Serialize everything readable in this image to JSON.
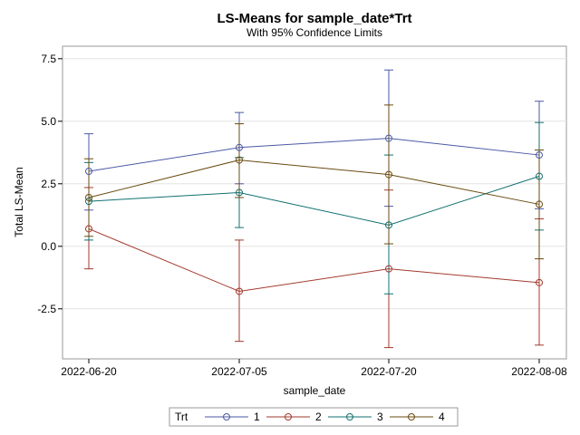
{
  "chart_data": {
    "type": "line",
    "title": "LS-Means for sample_date*Trt",
    "subtitle": "With 95% Confidence Limits",
    "xlabel": "sample_date",
    "ylabel": "Total LS-Mean",
    "categories": [
      "2022-06-20",
      "2022-07-05",
      "2022-07-20",
      "2022-08-08"
    ],
    "ylim": [
      -4.5,
      8.0
    ],
    "yticks": [
      -2.5,
      0.0,
      2.5,
      5.0,
      7.5
    ],
    "ytick_labels": [
      "-2.5",
      "0.0",
      "2.5",
      "5.0",
      "7.5"
    ],
    "grid": "horizontal",
    "legend": {
      "title": "Trt",
      "placement": "bottom"
    },
    "series": [
      {
        "name": "1",
        "color": "#4a5aa6",
        "values": [
          3.0,
          3.95,
          4.32,
          3.65
        ],
        "lower": [
          1.45,
          2.5,
          1.6,
          1.5
        ],
        "upper": [
          4.5,
          5.35,
          7.05,
          5.8
        ]
      },
      {
        "name": "2",
        "color": "#a33a2e",
        "values": [
          0.7,
          -1.8,
          -0.9,
          -1.45
        ],
        "lower": [
          -0.9,
          -3.8,
          -4.05,
          -3.95
        ],
        "upper": [
          2.35,
          0.25,
          2.25,
          1.1
        ]
      },
      {
        "name": "3",
        "color": "#127070",
        "values": [
          1.8,
          2.15,
          0.85,
          2.8
        ],
        "lower": [
          0.25,
          0.75,
          -1.9,
          0.65
        ],
        "upper": [
          3.35,
          3.55,
          3.65,
          4.95
        ]
      },
      {
        "name": "4",
        "color": "#6a4a10",
        "values": [
          1.95,
          3.45,
          2.87,
          1.68
        ],
        "lower": [
          0.4,
          1.95,
          0.1,
          -0.5
        ],
        "upper": [
          3.5,
          4.9,
          5.65,
          3.85
        ]
      }
    ]
  }
}
